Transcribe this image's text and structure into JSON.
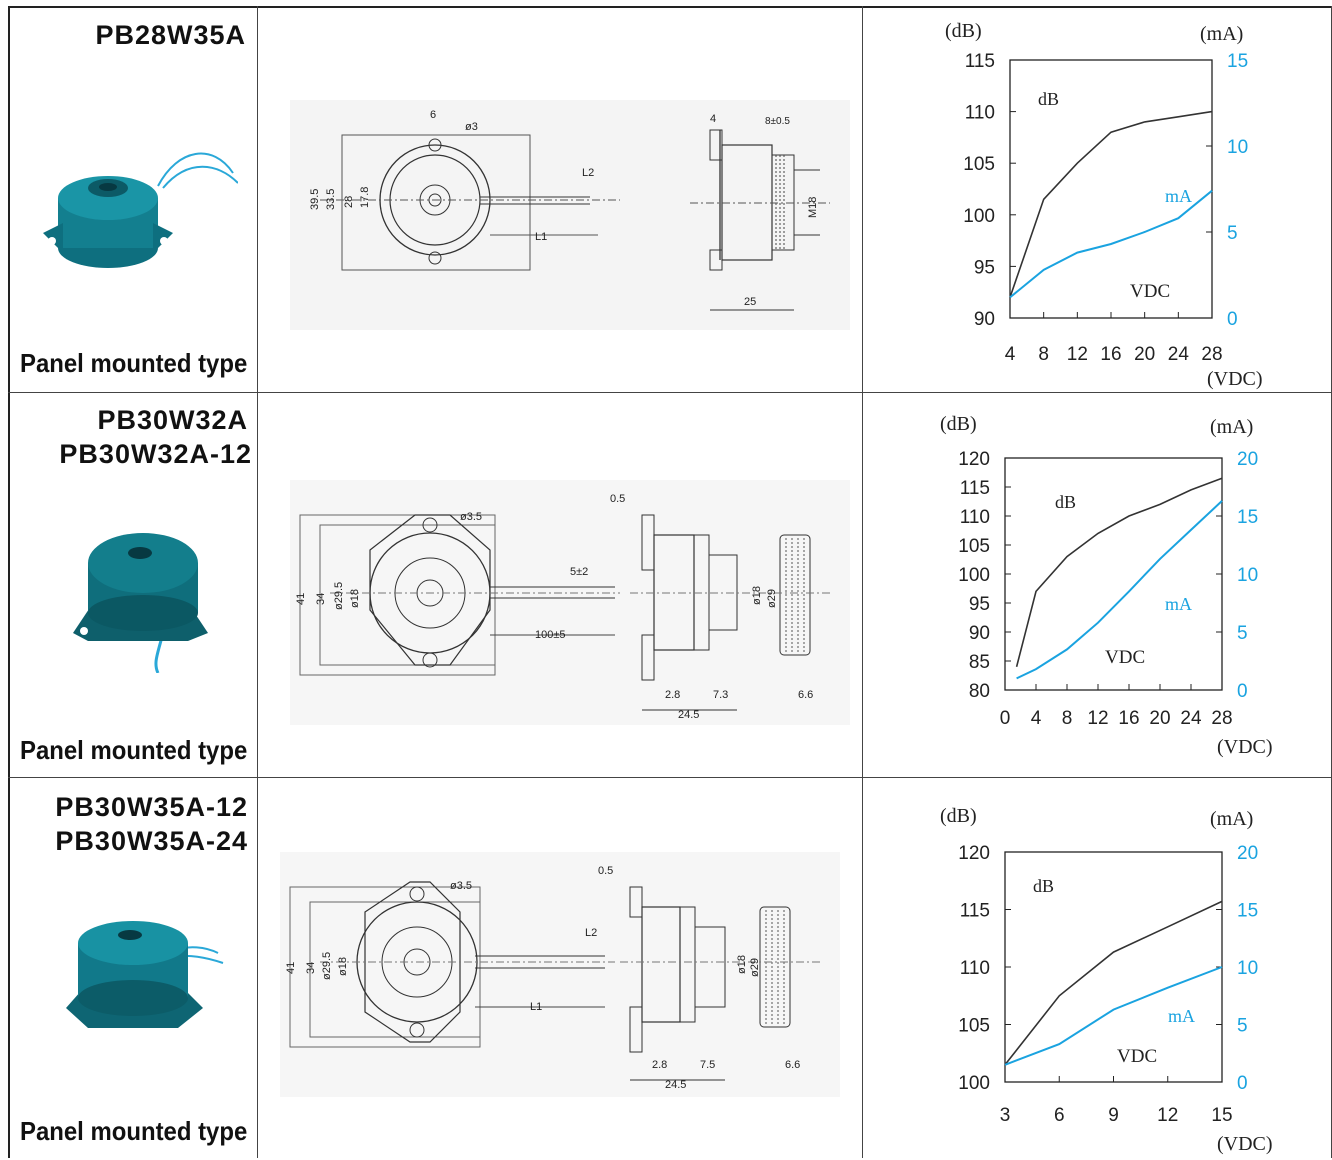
{
  "colors": {
    "db_line": "#333333",
    "ma_line": "#1aa3e0",
    "ma_text": "#1aa3e0",
    "border": "#222222"
  },
  "rows": [
    {
      "models": [
        "PB28W35A"
      ],
      "type_label": "Panel mounted type",
      "drawing_labels": {
        "front": [
          "6",
          "ø3",
          "39.5",
          "33.5",
          "28",
          "17.8",
          "L2",
          "L1"
        ],
        "side": [
          "4",
          "8±0.5",
          "M18",
          "25"
        ]
      },
      "chart_data": {
        "type": "line",
        "left_unit": "(dB)",
        "right_unit": "(mA)",
        "x_unit": "(VDC)",
        "x": [
          4,
          8,
          12,
          16,
          20,
          24,
          28
        ],
        "x_ticks": [
          "4",
          "8",
          "12",
          "16",
          "20",
          "24",
          "28"
        ],
        "left_ticks": [
          "115",
          "110",
          "105",
          "100",
          "95",
          "90"
        ],
        "right_ticks": [
          "15",
          "10",
          "5",
          "0"
        ],
        "ylim_left": [
          90,
          115
        ],
        "ylim_right": [
          0,
          15
        ],
        "series": [
          {
            "name": "dB",
            "axis": "left",
            "x": [
              4,
              8,
              12,
              16,
              20,
              24,
              28
            ],
            "values": [
              92,
              101.5,
              105,
              108,
              109,
              109.5,
              110
            ]
          },
          {
            "name": "mA",
            "axis": "right",
            "x": [
              4,
              8,
              12,
              16,
              20,
              24,
              28
            ],
            "values": [
              1.2,
              2.8,
              3.8,
              4.3,
              5,
              5.8,
              7.4
            ]
          }
        ],
        "inner_labels": {
          "db": "dB",
          "ma": "mA",
          "vdc": "VDC"
        }
      }
    },
    {
      "models": [
        "PB30W32A",
        "PB30W32A-12"
      ],
      "type_label": "Panel mounted type",
      "drawing_labels": {
        "front": [
          "ø3.5",
          "41",
          "34",
          "ø29.5",
          "ø18",
          "5±2",
          "100±5"
        ],
        "side": [
          "0.5",
          "ø18",
          "ø29",
          "2.8",
          "7.3",
          "6.6",
          "24.5"
        ]
      },
      "chart_data": {
        "type": "line",
        "left_unit": "(dB)",
        "right_unit": "(mA)",
        "x_unit": "(VDC)",
        "x": [
          0,
          4,
          8,
          12,
          16,
          20,
          24,
          28
        ],
        "x_ticks": [
          "0",
          "4",
          "8",
          "12",
          "16",
          "20",
          "24",
          "28"
        ],
        "left_ticks": [
          "120",
          "115",
          "110",
          "105",
          "100",
          "95",
          "90",
          "85",
          "80"
        ],
        "right_ticks": [
          "20",
          "15",
          "10",
          "5",
          "0"
        ],
        "ylim_left": [
          80,
          120
        ],
        "ylim_right": [
          0,
          20
        ],
        "series": [
          {
            "name": "dB",
            "axis": "left",
            "x": [
              1.5,
              4,
              8,
              12,
              16,
              20,
              24,
              28
            ],
            "values": [
              84,
              97,
              103,
              107,
              110,
              112,
              114.5,
              116.5
            ]
          },
          {
            "name": "mA",
            "axis": "right",
            "x": [
              1.5,
              4,
              8,
              12,
              16,
              20,
              24,
              28
            ],
            "values": [
              1,
              1.8,
              3.5,
              5.8,
              8.5,
              11.3,
              13.8,
              16.3
            ]
          }
        ],
        "inner_labels": {
          "db": "dB",
          "ma": "mA",
          "vdc": "VDC"
        }
      }
    },
    {
      "models": [
        "PB30W35A-12",
        "PB30W35A-24"
      ],
      "type_label": "Panel mounted type",
      "drawing_labels": {
        "front": [
          "ø3.5",
          "41",
          "34",
          "ø29.5",
          "ø18",
          "L2",
          "L1"
        ],
        "side": [
          "0.5",
          "ø18",
          "ø29",
          "2.8",
          "7.5",
          "6.6",
          "24.5"
        ]
      },
      "chart_data": {
        "type": "line",
        "left_unit": "(dB)",
        "right_unit": "(mA)",
        "x_unit": "(VDC)",
        "x": [
          3,
          6,
          9,
          12,
          15
        ],
        "x_ticks": [
          "3",
          "6",
          "9",
          "12",
          "15"
        ],
        "left_ticks": [
          "120",
          "115",
          "110",
          "105",
          "100"
        ],
        "right_ticks": [
          "20",
          "15",
          "10",
          "5",
          "0"
        ],
        "ylim_left": [
          100,
          120
        ],
        "ylim_right": [
          0,
          20
        ],
        "series": [
          {
            "name": "dB",
            "axis": "left",
            "x": [
              3,
              6,
              9,
              12,
              15
            ],
            "values": [
              101.5,
              107.5,
              111.3,
              113.5,
              115.7
            ]
          },
          {
            "name": "mA",
            "axis": "right",
            "x": [
              3,
              6,
              9,
              12,
              15
            ],
            "values": [
              1.5,
              3.3,
              6.3,
              8.2,
              10
            ]
          }
        ],
        "inner_labels": {
          "db": "dB",
          "ma": "mA",
          "vdc": "VDC"
        }
      }
    }
  ]
}
